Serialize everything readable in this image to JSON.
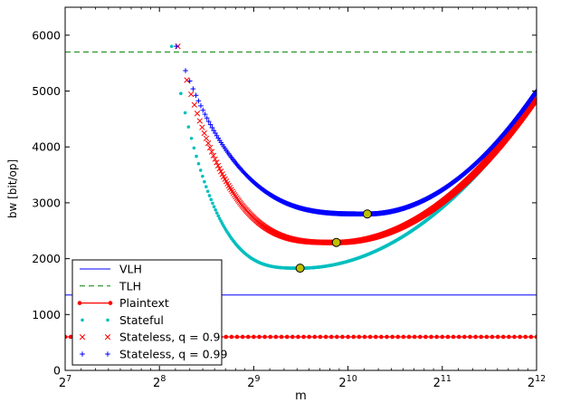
{
  "chart_data": {
    "type": "line",
    "title": "",
    "xlabel": "m",
    "ylabel": "bw [bit/op]",
    "x_scale": "log2",
    "xlim": [
      128,
      4096
    ],
    "ylim": [
      0,
      6500
    ],
    "x_ticks": [
      {
        "value": 128,
        "base": "2",
        "exp": "7"
      },
      {
        "value": 256,
        "base": "2",
        "exp": "8"
      },
      {
        "value": 512,
        "base": "2",
        "exp": "9"
      },
      {
        "value": 1024,
        "base": "2",
        "exp": "10"
      },
      {
        "value": 2048,
        "base": "2",
        "exp": "11"
      },
      {
        "value": 4096,
        "base": "2",
        "exp": "12"
      }
    ],
    "y_ticks": [
      "0",
      "1000",
      "2000",
      "3000",
      "4000",
      "5000",
      "6000"
    ],
    "y_tick_values": [
      0,
      1000,
      2000,
      3000,
      4000,
      5000,
      6000
    ],
    "grid": false,
    "legend_position": "bottom-left",
    "series": [
      {
        "name": "VLH",
        "style": "solid",
        "color": "#0000ff",
        "y": 1350
      },
      {
        "name": "TLH",
        "style": "dashed",
        "color": "#008000",
        "y": 5700
      },
      {
        "name": "Plaintext",
        "style": "line-dots",
        "color": "#ff0000",
        "y": 600
      },
      {
        "name": "Stateful",
        "style": "dots",
        "color": "#00bfbf",
        "x_start": 280,
        "x_end": 4096,
        "min_x": 720,
        "min_y": 1830,
        "end_y": 4830
      },
      {
        "name": "Stateless, q = 0.9",
        "style": "x",
        "color": "#ff0000",
        "x_start": 293,
        "x_end": 4096,
        "min_x": 940,
        "min_y": 2290,
        "end_y": 4880
      },
      {
        "name": "Stateless, q = 0.99",
        "style": "plus",
        "color": "#0000ff",
        "x_start": 290,
        "x_end": 4096,
        "min_x": 1180,
        "min_y": 2800,
        "end_y": 5000
      }
    ],
    "minima_markers": [
      {
        "x": 720,
        "y": 1830
      },
      {
        "x": 940,
        "y": 2290
      },
      {
        "x": 1180,
        "y": 2800
      }
    ],
    "colors": {
      "marker_fill": "#bfbf00",
      "axis": "#000000"
    }
  }
}
